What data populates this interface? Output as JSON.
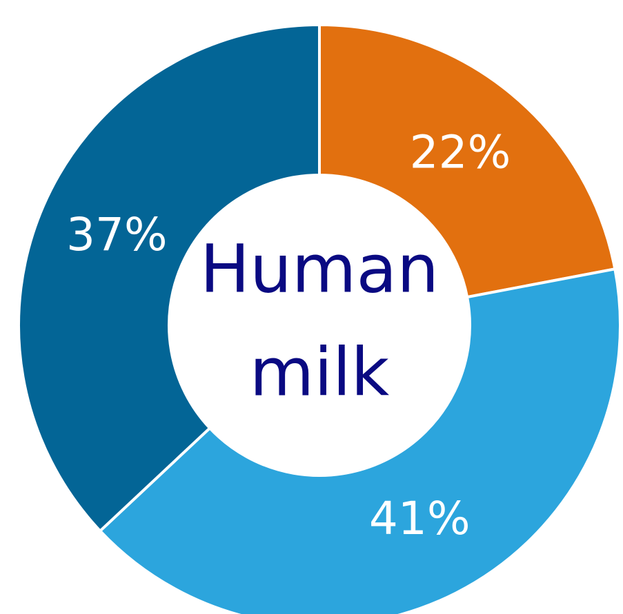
{
  "chart_data": {
    "type": "pie",
    "style": "donut",
    "slices": [
      {
        "label": "22%",
        "value": 22,
        "color": "#e2700f"
      },
      {
        "label": "41%",
        "value": 41,
        "color": "#2ca5dd"
      },
      {
        "label": "37%",
        "value": 37,
        "color": "#036596"
      }
    ],
    "center_text": [
      "Human",
      "milk"
    ],
    "center_text_color": "#0a0a82"
  }
}
